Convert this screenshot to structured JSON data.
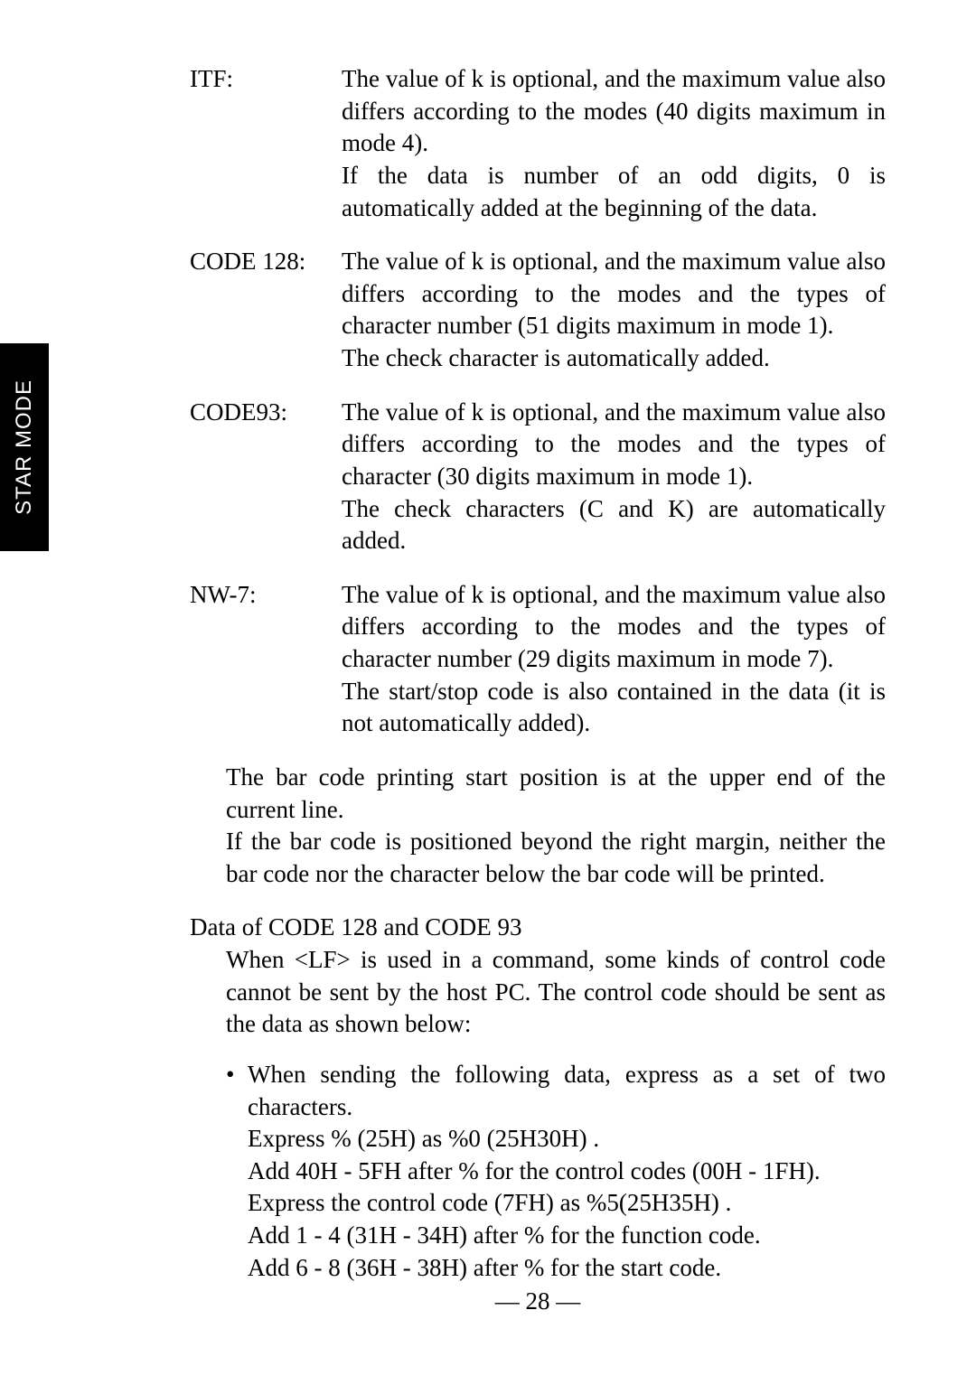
{
  "sideTab": "STAR MODE",
  "defs": [
    {
      "label": "ITF:",
      "body1": "The value of k is optional, and the maximum value also differs according to the modes (40 digits maximum in mode 4).",
      "body2": "If the data is number of an odd digits, 0 is automatically added at the beginning of the data."
    },
    {
      "label": "CODE 128:",
      "body1": "The value of k is optional, and the maximum value also differs according to the modes and the types of character number (51 digits maximum in mode 1).",
      "body2": "The check character is automatically added."
    },
    {
      "label": "CODE93:",
      "body1": "The value of k is optional, and the maximum value also differs according to the modes and the types of character (30 digits maximum in mode 1).",
      "body2": "The check characters (C and K) are automatically added."
    },
    {
      "label": "NW-7:",
      "body1": "The value of k is optional, and the maximum value also differs according to the modes and the types of character number (29 digits maximum in mode 7).",
      "body2": "The start/stop code is also contained in the data (it is not automatically added)."
    }
  ],
  "para1": "The bar code printing start position is at the upper end of the current line.",
  "para2": "If the bar code is positioned beyond the right margin, neither the bar code nor the character below the bar code will be printed.",
  "heading": "Data of CODE 128 and CODE 93",
  "subPara": "When <LF> is used in a command, some kinds of control code cannot be sent by the host PC. The control code should be sent as the data as shown below:",
  "bulletMarker": "•",
  "bulletFirst": "When sending the following data, express as a set of two characters.",
  "bulletLines": [
    "Express  % (25H)  as  %0 (25H30H) .",
    "Add  40H - 5FH  after  %  for the control codes (00H - 1FH).",
    "Express the control code (7FH) as  %5(25H35H) .",
    "Add  1 - 4 (31H - 34H)  after  %  for the function code.",
    "Add  6 - 8 (36H - 38H)  after  %  for the start code."
  ],
  "pageNum": "— 28 —"
}
